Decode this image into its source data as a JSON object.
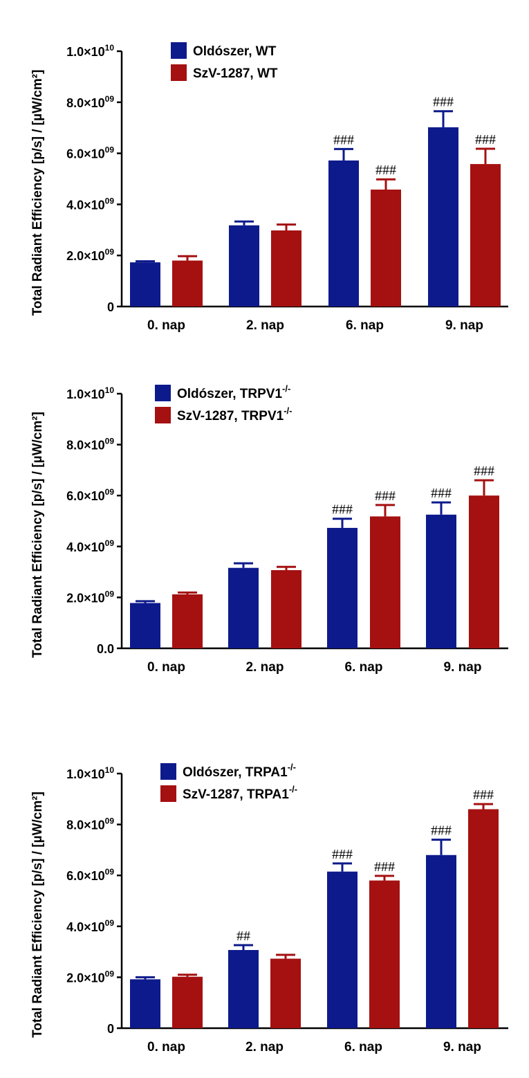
{
  "chart_data": [
    {
      "type": "bar",
      "ylabel": "Total Radiant Efficiency [p/s] / [µW/cm²]",
      "categories": [
        "0. nap",
        "2. nap",
        "6. nap",
        "9. nap"
      ],
      "ylim": [
        0,
        10000000000
      ],
      "ytick_values": [
        0,
        2000000000,
        4000000000,
        6000000000,
        8000000000,
        10000000000
      ],
      "ytick_labels": [
        {
          "mant": "0",
          "exp": ""
        },
        {
          "mant": "2.0×10",
          "exp": "09"
        },
        {
          "mant": "4.0×10",
          "exp": "09"
        },
        {
          "mant": "6.0×10",
          "exp": "09"
        },
        {
          "mant": "8.0×10",
          "exp": "09"
        },
        {
          "mant": "1.0×10",
          "exp": "10"
        }
      ],
      "series": [
        {
          "name": "Oldószer, WT",
          "name_base": "Oldószer, WT",
          "name_sup": "",
          "color": "#0d1a8c",
          "values": [
            1730000000,
            3180000000,
            5720000000,
            7020000000
          ],
          "errors": [
            40000000,
            150000000,
            450000000,
            630000000
          ],
          "sig": [
            "",
            "",
            "###",
            "###"
          ]
        },
        {
          "name": "SzV-1287, WT",
          "name_base": "SzV-1287, WT",
          "name_sup": "",
          "color": "#a51010",
          "values": [
            1800000000,
            2980000000,
            4580000000,
            5580000000
          ],
          "errors": [
            170000000,
            230000000,
            400000000,
            600000000
          ],
          "sig": [
            "",
            "",
            "###",
            "###"
          ]
        }
      ]
    },
    {
      "type": "bar",
      "ylabel": "Total Radiant Efficiency [p/s] / [µW/cm²]",
      "categories": [
        "0. nap",
        "2. nap",
        "6. nap",
        "9. nap"
      ],
      "ylim": [
        0,
        10000000000
      ],
      "ytick_values": [
        0,
        2000000000,
        4000000000,
        6000000000,
        8000000000,
        10000000000
      ],
      "ytick_labels": [
        {
          "mant": "0.0",
          "exp": ""
        },
        {
          "mant": "2.0×10",
          "exp": "09"
        },
        {
          "mant": "4.0×10",
          "exp": "09"
        },
        {
          "mant": "6.0×10",
          "exp": "09"
        },
        {
          "mant": "8.0×10",
          "exp": "09"
        },
        {
          "mant": "1.0×10",
          "exp": "10"
        }
      ],
      "series": [
        {
          "name": "Oldószer, TRPV1-/-",
          "name_base": "Oldószer, TRPV1",
          "name_sup": "-/-",
          "color": "#0d1a8c",
          "values": [
            1780000000,
            3160000000,
            4730000000,
            5250000000
          ],
          "errors": [
            70000000,
            180000000,
            360000000,
            480000000
          ],
          "sig": [
            "",
            "",
            "###",
            "###"
          ]
        },
        {
          "name": "SzV-1287, TRPV1-/-",
          "name_base": "SzV-1287, TRPV1",
          "name_sup": "-/-",
          "color": "#a51010",
          "values": [
            2120000000,
            3070000000,
            5180000000,
            6000000000
          ],
          "errors": [
            70000000,
            130000000,
            450000000,
            600000000
          ],
          "sig": [
            "",
            "",
            "###",
            "###"
          ]
        }
      ]
    },
    {
      "type": "bar",
      "ylabel": "Total Radiant Efficiency [p/s] / [µW/cm²]",
      "categories": [
        "0. nap",
        "2. nap",
        "6. nap",
        "9. nap"
      ],
      "ylim": [
        0,
        10000000000
      ],
      "ytick_values": [
        0,
        2000000000,
        4000000000,
        6000000000,
        8000000000,
        10000000000
      ],
      "ytick_labels": [
        {
          "mant": "0",
          "exp": ""
        },
        {
          "mant": "2.0×10",
          "exp": "09"
        },
        {
          "mant": "4.0×10",
          "exp": "09"
        },
        {
          "mant": "6.0×10",
          "exp": "09"
        },
        {
          "mant": "8.0×10",
          "exp": "09"
        },
        {
          "mant": "1.0×10",
          "exp": "10"
        }
      ],
      "series": [
        {
          "name": "Oldószer, TRPA1-/-",
          "name_base": "Oldószer, TRPA1",
          "name_sup": "-/-",
          "color": "#0d1a8c",
          "values": [
            1920000000,
            3070000000,
            6150000000,
            6800000000
          ],
          "errors": [
            80000000,
            190000000,
            320000000,
            600000000
          ],
          "sig": [
            "",
            "##",
            "###",
            "###"
          ]
        },
        {
          "name": "SzV-1287, TRPA1-/-",
          "name_base": "SzV-1287, TRPA1",
          "name_sup": "-/-",
          "color": "#a51010",
          "values": [
            2020000000,
            2730000000,
            5800000000,
            8600000000
          ],
          "errors": [
            80000000,
            150000000,
            180000000,
            200000000
          ],
          "sig": [
            "",
            "",
            "###",
            "###"
          ]
        }
      ]
    }
  ]
}
